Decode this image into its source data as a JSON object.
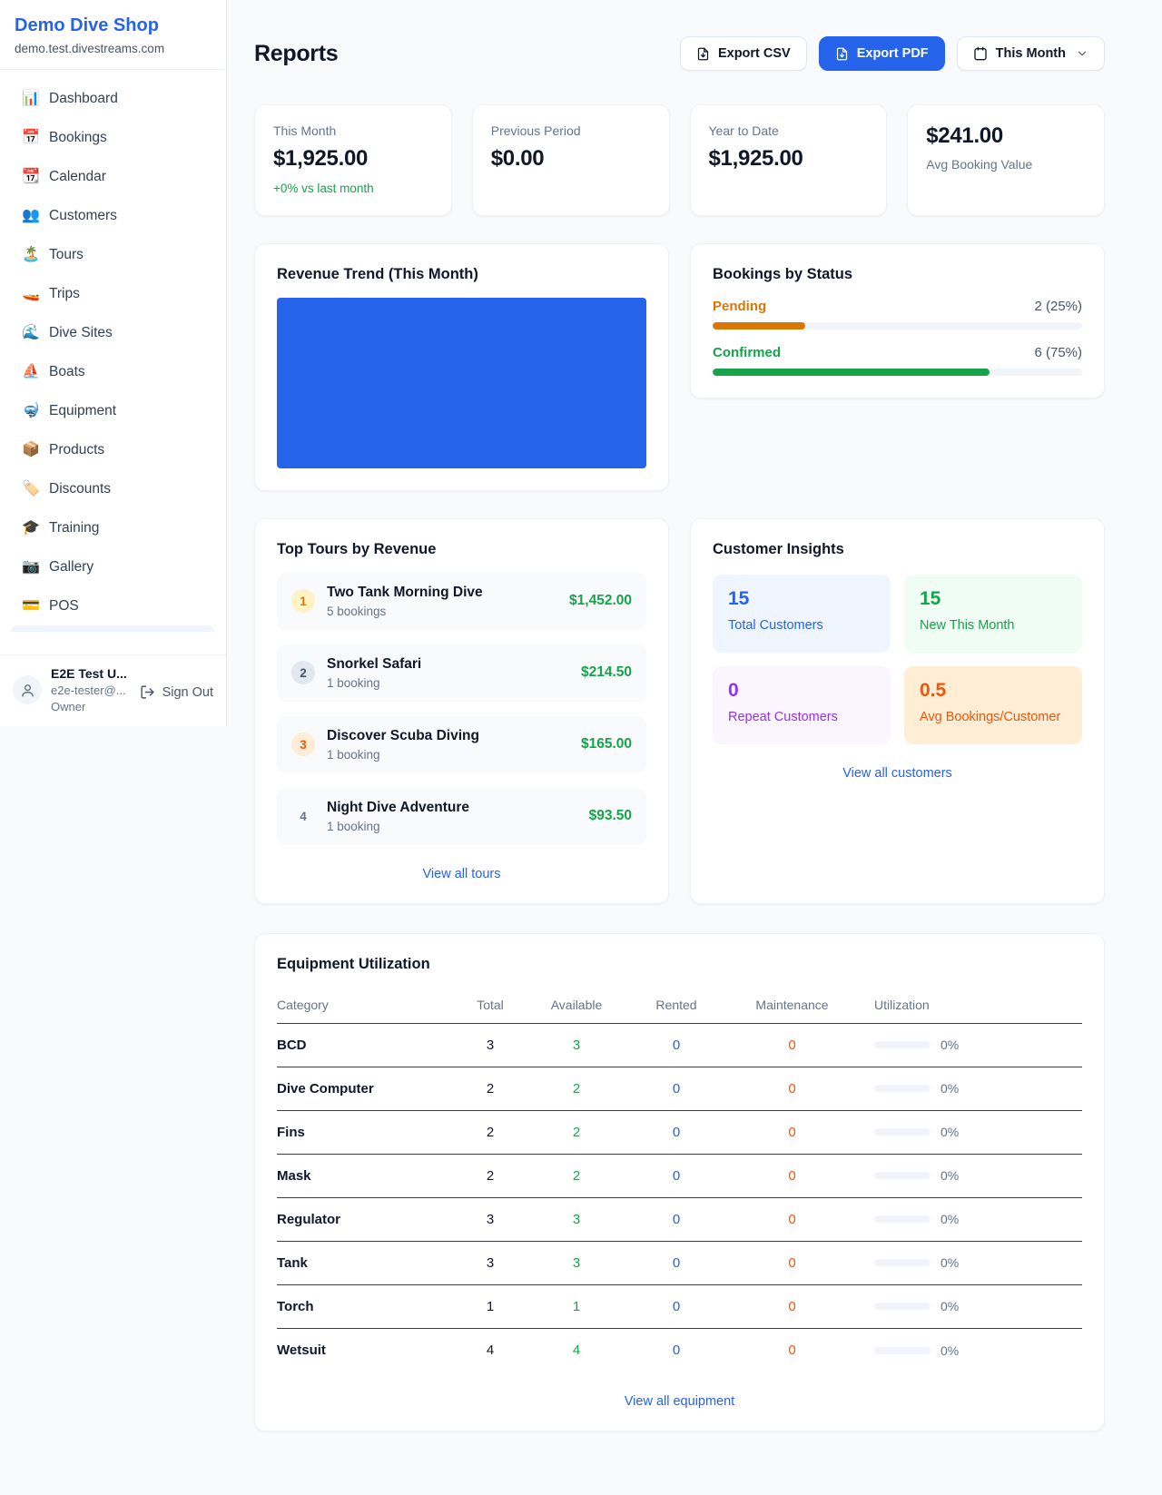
{
  "colors": {
    "accent_blue": "#2563eb",
    "green": "#16a34a",
    "amber": "#d97706",
    "orange": "#ea580c",
    "purple": "#9333ea",
    "gray_text": "#64748b",
    "page_bg": "#f8fafc"
  },
  "sidebar": {
    "brand": {
      "name": "Demo Dive Shop",
      "domain": "demo.test.divestreams.com"
    },
    "items": [
      {
        "icon": "📊",
        "label": "Dashboard"
      },
      {
        "icon": "📅",
        "label": "Bookings"
      },
      {
        "icon": "📆",
        "label": "Calendar"
      },
      {
        "icon": "👥",
        "label": "Customers"
      },
      {
        "icon": "🏝️",
        "label": "Tours"
      },
      {
        "icon": "🚤",
        "label": "Trips"
      },
      {
        "icon": "🌊",
        "label": "Dive Sites"
      },
      {
        "icon": "⛵",
        "label": "Boats"
      },
      {
        "icon": "🤿",
        "label": "Equipment"
      },
      {
        "icon": "📦",
        "label": "Products"
      },
      {
        "icon": "🏷️",
        "label": "Discounts"
      },
      {
        "icon": "🎓",
        "label": "Training"
      },
      {
        "icon": "📷",
        "label": "Gallery"
      },
      {
        "icon": "💳",
        "label": "POS"
      }
    ],
    "user": {
      "name": "E2E Test U...",
      "email": "e2e-tester@...",
      "role": "Owner",
      "sign_out": "Sign Out"
    }
  },
  "header": {
    "title": "Reports",
    "export_csv": "Export CSV",
    "export_pdf": "Export PDF",
    "period": "This Month"
  },
  "stats": [
    {
      "label": "This Month",
      "value": "$1,925.00",
      "delta": "+0% vs last month"
    },
    {
      "label": "Previous Period",
      "value": "$0.00"
    },
    {
      "label": "Year to Date",
      "value": "$1,925.00"
    },
    {
      "label": "Avg Booking Value",
      "value": "$241.00"
    }
  ],
  "revenue_trend": {
    "title": "Revenue Trend (This Month)",
    "chart_data": {
      "type": "bar",
      "categories": [
        ""
      ],
      "values": [
        1925
      ],
      "title": "Revenue Trend (This Month)",
      "note": "single solid blue block filling the plot area, no axes or labels visible",
      "bar_color": "#2563eb"
    }
  },
  "bookings_by_status": {
    "title": "Bookings by Status",
    "rows": [
      {
        "label": "Pending",
        "count": "2 (25%)",
        "pct": 25
      },
      {
        "label": "Confirmed",
        "count": "6 (75%)",
        "pct": 75
      }
    ]
  },
  "top_tours": {
    "title": "Top Tours by Revenue",
    "rows": [
      {
        "rank": "1",
        "name": "Two Tank Morning Dive",
        "bookings": "5 bookings",
        "revenue": "$1,452.00"
      },
      {
        "rank": "2",
        "name": "Snorkel Safari",
        "bookings": "1 booking",
        "revenue": "$214.50"
      },
      {
        "rank": "3",
        "name": "Discover Scuba Diving",
        "bookings": "1 booking",
        "revenue": "$165.00"
      },
      {
        "rank": "4",
        "name": "Night Dive Adventure",
        "bookings": "1 booking",
        "revenue": "$93.50"
      }
    ],
    "view_all": "View all tours"
  },
  "customer_insights": {
    "title": "Customer Insights",
    "tiles": [
      {
        "value": "15",
        "label": "Total Customers"
      },
      {
        "value": "15",
        "label": "New This Month"
      },
      {
        "value": "0",
        "label": "Repeat Customers"
      },
      {
        "value": "0.5",
        "label": "Avg Bookings/Customer"
      }
    ],
    "view_all": "View all customers"
  },
  "equipment": {
    "title": "Equipment Utilization",
    "columns": [
      "Category",
      "Total",
      "Available",
      "Rented",
      "Maintenance",
      "Utilization"
    ],
    "rows": [
      {
        "category": "BCD",
        "total": "3",
        "available": "3",
        "rented": "0",
        "maintenance": "0",
        "utilization": "0%",
        "utilization_pct": 0
      },
      {
        "category": "Dive Computer",
        "total": "2",
        "available": "2",
        "rented": "0",
        "maintenance": "0",
        "utilization": "0%",
        "utilization_pct": 0
      },
      {
        "category": "Fins",
        "total": "2",
        "available": "2",
        "rented": "0",
        "maintenance": "0",
        "utilization": "0%",
        "utilization_pct": 0
      },
      {
        "category": "Mask",
        "total": "2",
        "available": "2",
        "rented": "0",
        "maintenance": "0",
        "utilization": "0%",
        "utilization_pct": 0
      },
      {
        "category": "Regulator",
        "total": "3",
        "available": "3",
        "rented": "0",
        "maintenance": "0",
        "utilization": "0%",
        "utilization_pct": 0
      },
      {
        "category": "Tank",
        "total": "3",
        "available": "3",
        "rented": "0",
        "maintenance": "0",
        "utilization": "0%",
        "utilization_pct": 0
      },
      {
        "category": "Torch",
        "total": "1",
        "available": "1",
        "rented": "0",
        "maintenance": "0",
        "utilization": "0%",
        "utilization_pct": 0
      },
      {
        "category": "Wetsuit",
        "total": "4",
        "available": "4",
        "rented": "0",
        "maintenance": "0",
        "utilization": "0%",
        "utilization_pct": 0
      }
    ],
    "view_all": "View all equipment"
  }
}
